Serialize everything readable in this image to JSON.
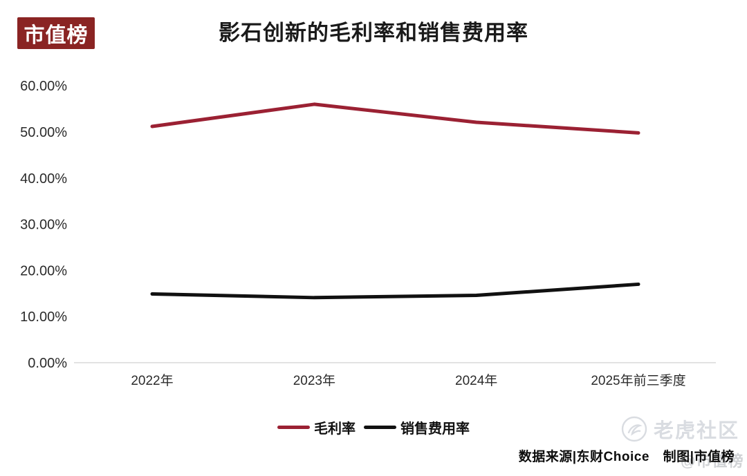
{
  "header": {
    "logo_text": "市值榜"
  },
  "chart_data": {
    "type": "line",
    "title": "影石创新的毛利率和销售费用率",
    "categories": [
      "2022年",
      "2023年",
      "2024年",
      "2025年前三季度"
    ],
    "series": [
      {
        "name": "毛利率",
        "color": "#9B2133",
        "values": [
          51.2,
          56.0,
          52.1,
          49.8
        ]
      },
      {
        "name": "销售费用率",
        "color": "#111111",
        "values": [
          14.9,
          14.1,
          14.6,
          17.0
        ]
      }
    ],
    "ylim": [
      0,
      60
    ],
    "ytick_step": 10,
    "ytick_labels": [
      "0.00%",
      "10.00%",
      "20.00%",
      "30.00%",
      "40.00%",
      "50.00%",
      "60.00%"
    ],
    "grid": false,
    "legend_position": "bottom"
  },
  "footer": {
    "source": "数据来源|东财Choice",
    "credit": "制图|市值榜"
  },
  "watermarks": {
    "community": "老虎社区",
    "at_brand": "@市值榜"
  },
  "colors": {
    "logo_bg": "#8A2423",
    "axis_line": "#D8D8D8",
    "watermark": "#D9DCE1"
  }
}
